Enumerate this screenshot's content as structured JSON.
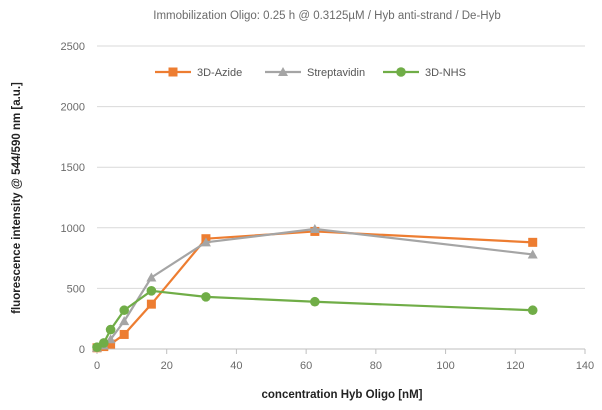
{
  "chart_data": {
    "type": "line",
    "title": "Immobilization Oligo: 0.25 h @ 0.3125µM / Hyb anti-strand / De-Hyb",
    "xlabel": "concentration Hyb Oligo [nM]",
    "ylabel": "fluorescence intensity @ 544/590 nm [a.u.]",
    "xlim": [
      0,
      140
    ],
    "ylim": [
      0,
      2500
    ],
    "xticks": [
      0,
      20,
      40,
      60,
      80,
      100,
      120,
      140
    ],
    "yticks": [
      0,
      500,
      1000,
      1500,
      2000,
      2500
    ],
    "grid": "horizontal",
    "legend_position": "top",
    "series": [
      {
        "name": "3D-Azide",
        "color": "#ed7d31",
        "marker": "square",
        "x": [
          0,
          1.95,
          3.9,
          7.8,
          15.6,
          31.25,
          62.5,
          125
        ],
        "y": [
          10,
          20,
          40,
          120,
          370,
          910,
          970,
          880
        ]
      },
      {
        "name": "Streptavidin",
        "color": "#a5a5a5",
        "marker": "triangle",
        "x": [
          0,
          1.95,
          3.9,
          7.8,
          15.6,
          31.25,
          62.5,
          125
        ],
        "y": [
          10,
          30,
          80,
          230,
          590,
          880,
          990,
          780
        ]
      },
      {
        "name": "3D-NHS",
        "color": "#70ad47",
        "marker": "circle",
        "x": [
          0,
          1.95,
          3.9,
          7.8,
          15.6,
          31.25,
          62.5,
          125
        ],
        "y": [
          15,
          50,
          160,
          320,
          480,
          430,
          390,
          320
        ]
      }
    ]
  }
}
